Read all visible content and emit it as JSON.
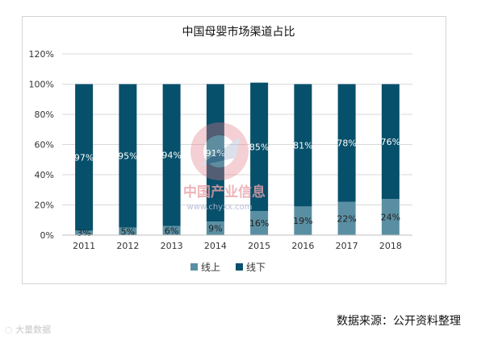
{
  "chart_data": {
    "type": "bar",
    "stacked": true,
    "title": "中国母婴市场渠道占比",
    "categories": [
      "2011",
      "2012",
      "2013",
      "2014",
      "2015",
      "2016",
      "2017",
      "2018"
    ],
    "series": [
      {
        "name": "线上",
        "values": [
          3,
          5,
          6,
          9,
          16,
          19,
          22,
          24
        ],
        "labels": [
          "3%",
          "5%",
          "6%",
          "9%",
          "16%",
          "19%",
          "22%",
          "24%"
        ],
        "color": "#5a8fa3"
      },
      {
        "name": "线下",
        "values": [
          97,
          95,
          94,
          91,
          85,
          81,
          78,
          76
        ],
        "labels": [
          "97%",
          "95%",
          "94%",
          "91%",
          "85%",
          "81%",
          "78%",
          "76%"
        ],
        "color": "#07506b"
      }
    ],
    "ylim": [
      0,
      120
    ],
    "yticks": [
      0,
      20,
      40,
      60,
      80,
      100,
      120
    ],
    "ytick_labels": [
      "0%",
      "20%",
      "40%",
      "60%",
      "80%",
      "100%",
      "120%"
    ],
    "grid": true,
    "legend_position": "bottom"
  },
  "source_note": "数据来源：公开资料整理",
  "watermark": {
    "center_cn": "中国产业信息",
    "center_url": "www.chyxx.com",
    "corner": "大量数据"
  }
}
